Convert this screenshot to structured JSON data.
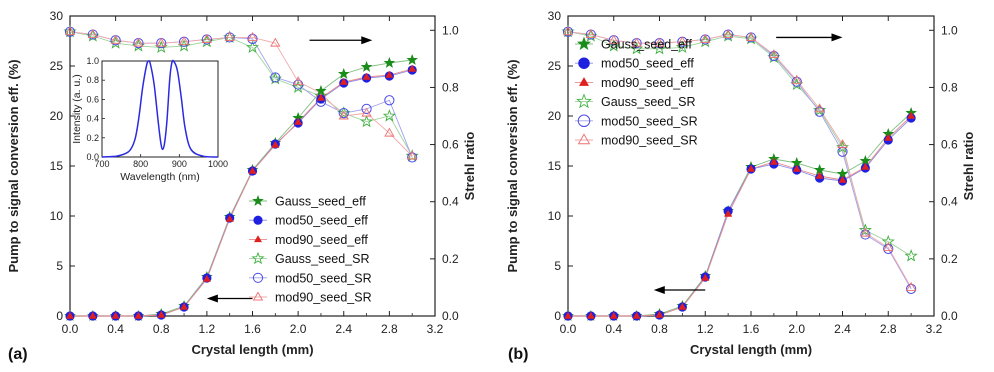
{
  "colors": {
    "gauss": "#1a8c1a",
    "mod50": "#1f1fe0",
    "mod90": "#e01f1f",
    "gauss_sr": "#40b040",
    "mod50_sr": "#4a4ae8",
    "mod90_sr": "#ee7070",
    "inset_line": "#2a2ae0",
    "axis": "#222222"
  },
  "legend_labels": [
    "Gauss_seed_eff",
    "mod50_seed_eff",
    "mod90_seed_eff",
    "Gauss_seed_SR",
    "mod50_seed_SR",
    "mod90_seed_SR"
  ],
  "chart_data": [
    {
      "panel_label": "(a)",
      "type": "scatter",
      "xlabel": "Crystal length (mm)",
      "ylabel": "Pump to signal conversion eff. (%)",
      "y2label": "Strehl ratio",
      "xlim": [
        0,
        3.2
      ],
      "ylim": [
        0,
        30
      ],
      "y2lim": [
        0,
        1.05
      ],
      "xticks": [
        "0.0",
        "0.4",
        "0.8",
        "1.2",
        "1.6",
        "2.0",
        "2.4",
        "2.8",
        "3.2"
      ],
      "yticks": [
        "0",
        "5",
        "10",
        "15",
        "20",
        "25",
        "30"
      ],
      "y2ticks": [
        "0.0",
        "0.2",
        "0.4",
        "0.6",
        "0.8",
        "1.0"
      ],
      "x": [
        0,
        0.2,
        0.4,
        0.6,
        0.8,
        1.0,
        1.2,
        1.4,
        1.6,
        1.8,
        2.0,
        2.2,
        2.4,
        2.6,
        2.8,
        3.0
      ],
      "legend_position": "lower-right",
      "series": [
        {
          "name": "Gauss_seed_eff",
          "axis": "left",
          "marker": "star-filled",
          "values": [
            0,
            0,
            0,
            0,
            0.2,
            1.0,
            3.9,
            9.9,
            14.6,
            17.3,
            19.8,
            22.5,
            24.2,
            24.9,
            25.3,
            25.6
          ]
        },
        {
          "name": "mod50_seed_eff",
          "axis": "left",
          "marker": "circle-filled",
          "values": [
            0,
            0,
            0,
            0,
            0.1,
            0.9,
            3.8,
            9.8,
            14.5,
            17.2,
            19.3,
            21.7,
            23.3,
            23.8,
            24.0,
            24.6
          ]
        },
        {
          "name": "mod90_seed_eff",
          "axis": "left",
          "marker": "triangle-filled",
          "values": [
            0,
            0,
            0,
            0,
            0.1,
            0.9,
            3.7,
            9.7,
            14.5,
            17.1,
            19.4,
            21.8,
            23.4,
            23.9,
            24.1,
            24.7
          ]
        },
        {
          "name": "Gauss_seed_SR",
          "axis": "right",
          "marker": "star-open",
          "values": [
            0.995,
            0.98,
            0.955,
            0.945,
            0.94,
            0.945,
            0.96,
            0.975,
            0.94,
            0.83,
            0.8,
            0.77,
            0.71,
            0.68,
            0.7,
            0.56
          ]
        },
        {
          "name": "mod50_seed_SR",
          "axis": "right",
          "marker": "circle-open",
          "values": [
            0.995,
            0.985,
            0.965,
            0.955,
            0.955,
            0.96,
            0.968,
            0.975,
            0.97,
            0.835,
            0.81,
            0.75,
            0.71,
            0.725,
            0.755,
            0.555
          ]
        },
        {
          "name": "mod90_seed_SR",
          "axis": "right",
          "marker": "triangle-open",
          "values": [
            0.995,
            0.985,
            0.965,
            0.955,
            0.955,
            0.96,
            0.968,
            0.975,
            0.975,
            0.955,
            0.82,
            0.78,
            0.7,
            0.71,
            0.64,
            0.56
          ]
        }
      ],
      "arrows": [
        {
          "direction": "left",
          "x_from": 1.6,
          "x_to": 1.2,
          "y": 1.75,
          "axis": "left"
        },
        {
          "direction": "right",
          "x_from": 2.1,
          "x_to": 2.65,
          "y": 0.965,
          "axis": "right"
        }
      ],
      "inset": {
        "type": "line",
        "xlabel": "Wavelength (nm)",
        "ylabel": "Intensity (a. u.)",
        "xlim": [
          700,
          1000
        ],
        "ylim": [
          0,
          1.0
        ],
        "xticks": [
          "700",
          "800",
          "900",
          "1000"
        ],
        "yticks": [
          "0.0",
          "0.2",
          "0.4",
          "0.6",
          "0.8",
          "1.0"
        ],
        "x": [
          700,
          740,
          770,
          785,
          795,
          805,
          815,
          820,
          825,
          835,
          845,
          852,
          857,
          862,
          868,
          875,
          880,
          885,
          895,
          905,
          915,
          930,
          960,
          1000
        ],
        "values": [
          0.0,
          0.01,
          0.06,
          0.18,
          0.4,
          0.72,
          0.95,
          1.0,
          0.97,
          0.75,
          0.38,
          0.15,
          0.08,
          0.15,
          0.38,
          0.8,
          0.97,
          1.0,
          0.9,
          0.62,
          0.3,
          0.08,
          0.01,
          0.0
        ]
      }
    },
    {
      "panel_label": "(b)",
      "type": "scatter",
      "xlabel": "Crystal length (mm)",
      "ylabel": "Pump to signal conversion eff. (%)",
      "y2label": "Strehl ratio",
      "xlim": [
        0,
        3.2
      ],
      "ylim": [
        0,
        30
      ],
      "y2lim": [
        0,
        1.05
      ],
      "xticks": [
        "0.0",
        "0.4",
        "0.8",
        "1.2",
        "1.6",
        "2.0",
        "2.4",
        "2.8",
        "3.2"
      ],
      "yticks": [
        "0",
        "5",
        "10",
        "15",
        "20",
        "25",
        "30"
      ],
      "y2ticks": [
        "0.0",
        "0.2",
        "0.4",
        "0.6",
        "0.8",
        "1.0"
      ],
      "x": [
        0,
        0.2,
        0.4,
        0.6,
        0.8,
        1.0,
        1.2,
        1.4,
        1.6,
        1.8,
        2.0,
        2.2,
        2.4,
        2.6,
        2.8,
        3.0
      ],
      "legend_position": "top-left",
      "series": [
        {
          "name": "Gauss_seed_eff",
          "axis": "left",
          "marker": "star-filled",
          "values": [
            0,
            0,
            0,
            0,
            0.2,
            1.0,
            4.0,
            10.5,
            14.9,
            15.7,
            15.3,
            14.6,
            14.2,
            15.5,
            18.2,
            20.3
          ]
        },
        {
          "name": "mod50_seed_eff",
          "axis": "left",
          "marker": "circle-filled",
          "values": [
            0,
            0,
            0,
            0,
            0.1,
            0.9,
            3.9,
            10.5,
            14.7,
            15.2,
            14.6,
            13.8,
            13.5,
            14.8,
            17.6,
            19.8
          ]
        },
        {
          "name": "mod90_seed_eff",
          "axis": "left",
          "marker": "triangle-filled",
          "values": [
            0,
            0,
            0,
            0,
            0.1,
            0.9,
            3.8,
            10.2,
            14.7,
            15.4,
            14.7,
            14.0,
            13.6,
            14.9,
            17.8,
            20.0
          ]
        },
        {
          "name": "Gauss_seed_SR",
          "axis": "right",
          "marker": "star-open",
          "values": [
            0.995,
            0.98,
            0.945,
            0.935,
            0.935,
            0.94,
            0.96,
            0.98,
            0.97,
            0.905,
            0.81,
            0.72,
            0.59,
            0.3,
            0.26,
            0.21
          ]
        },
        {
          "name": "mod50_seed_SR",
          "axis": "right",
          "marker": "circle-open",
          "values": [
            0.995,
            0.985,
            0.965,
            0.955,
            0.955,
            0.96,
            0.968,
            0.985,
            0.975,
            0.91,
            0.82,
            0.715,
            0.575,
            0.285,
            0.235,
            0.095
          ]
        },
        {
          "name": "mod90_seed_SR",
          "axis": "right",
          "marker": "triangle-open",
          "values": [
            0.995,
            0.985,
            0.965,
            0.955,
            0.955,
            0.96,
            0.968,
            0.985,
            0.975,
            0.915,
            0.825,
            0.725,
            0.6,
            0.29,
            0.24,
            0.1
          ]
        }
      ],
      "arrows": [
        {
          "direction": "left",
          "x_from": 1.2,
          "x_to": 0.75,
          "y": 2.6,
          "axis": "left"
        },
        {
          "direction": "right",
          "x_from": 1.82,
          "x_to": 2.4,
          "y": 0.975,
          "axis": "right"
        }
      ]
    }
  ]
}
